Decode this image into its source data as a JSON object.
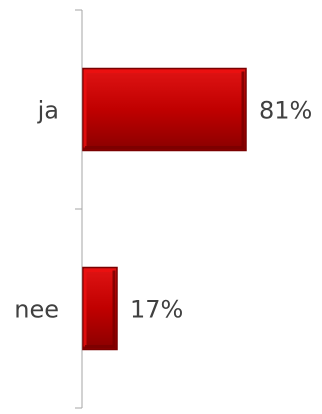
{
  "chart_data": {
    "type": "bar",
    "orientation": "horizontal",
    "title": "",
    "xlabel": "",
    "ylabel": "",
    "categories": [
      "ja",
      "nee"
    ],
    "values": [
      81,
      17
    ],
    "data_labels": [
      "81%",
      "17%"
    ],
    "unit": "%",
    "xlim": [
      0,
      100
    ],
    "grid": false,
    "legend": "none",
    "colors": {
      "bar": "#c00000",
      "bar_light": "#ee1010",
      "bar_dark": "#7a0000",
      "axis": "#a6a6a6",
      "text": "#404040"
    }
  }
}
